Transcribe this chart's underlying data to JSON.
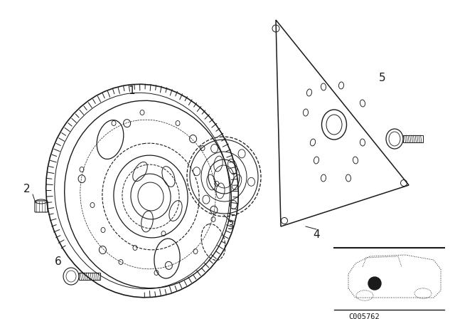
{
  "bg_color": "#ffffff",
  "line_color": "#1a1a1a",
  "figsize": [
    6.4,
    4.48
  ],
  "dpi": 100,
  "code_text": "C005762"
}
